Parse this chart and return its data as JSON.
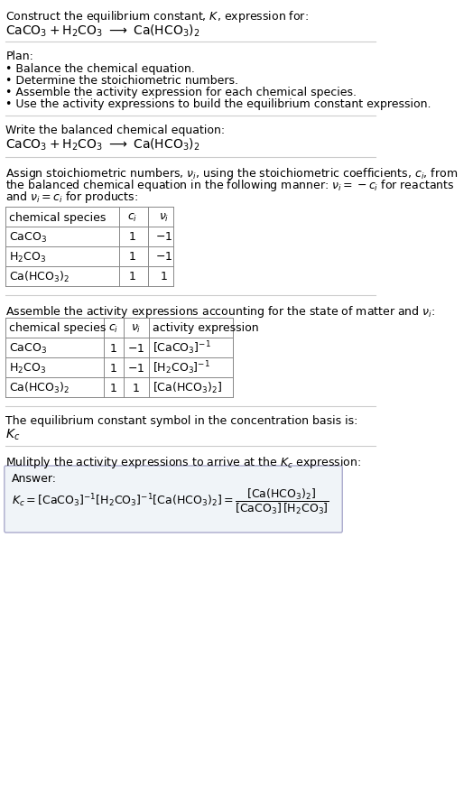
{
  "title_text": "Construct the equilibrium constant, $K$, expression for:",
  "reaction_header": "$\\mathrm{CaCO_3 + H_2CO_3 \\ \\longrightarrow \\ Ca(HCO_3)_2}$",
  "plan_header": "Plan:",
  "plan_bullets": [
    "\\textbullet\\ Balance the chemical equation.",
    "\\textbullet\\ Determine the stoichiometric numbers.",
    "\\textbullet\\ Assemble the activity expression for each chemical species.",
    "\\textbullet\\ Use the activity expressions to build the equilibrium constant expression."
  ],
  "section2_header": "Write the balanced chemical equation:",
  "section2_reaction": "$\\mathrm{CaCO_3 + H_2CO_3 \\ \\longrightarrow \\ Ca(HCO_3)_2}$",
  "section3_header": "Assign stoichiometric numbers, $\\nu_i$, using the stoichiometric coefficients, $c_i$, from\nthe balanced chemical equation in the following manner: $\\nu_i = -c_i$ for reactants\nand $\\nu_i = c_i$ for products:",
  "table1_headers": [
    "chemical species",
    "$c_i$",
    "$\\nu_i$"
  ],
  "table1_rows": [
    [
      "$\\mathrm{CaCO_3}$",
      "1",
      "$-1$"
    ],
    [
      "$\\mathrm{H_2CO_3}$",
      "1",
      "$-1$"
    ],
    [
      "$\\mathrm{Ca(HCO_3)_2}$",
      "1",
      "1"
    ]
  ],
  "section4_header": "Assemble the activity expressions accounting for the state of matter and $\\nu_i$:",
  "table2_headers": [
    "chemical species",
    "$c_i$",
    "$\\nu_i$",
    "activity expression"
  ],
  "table2_rows": [
    [
      "$\\mathrm{CaCO_3}$",
      "1",
      "$-1$",
      "$[\\mathrm{CaCO_3}]^{-1}$"
    ],
    [
      "$\\mathrm{H_2CO_3}$",
      "1",
      "$-1$",
      "$[\\mathrm{H_2CO_3}]^{-1}$"
    ],
    [
      "$\\mathrm{Ca(HCO_3)_2}$",
      "1",
      "1",
      "$[\\mathrm{Ca(HCO_3)_2}]$"
    ]
  ],
  "section5_header": "The equilibrium constant symbol in the concentration basis is:",
  "section5_symbol": "$K_c$",
  "section6_header": "Mulitply the activity expressions to arrive at the $K_c$ expression:",
  "answer_label": "Answer:",
  "answer_line1": "$K_c = [\\mathrm{CaCO_3}]^{-1} [\\mathrm{H_2CO_3}]^{-1} [\\mathrm{Ca(HCO_3)_2}] = \\dfrac{[\\mathrm{Ca(HCO_3)_2}]}{[\\mathrm{CaCO_3}]\\,[\\mathrm{H_2CO_3}]}$",
  "bg_color": "#ffffff",
  "text_color": "#000000",
  "table_border_color": "#aaaaaa",
  "answer_bg_color": "#f0f4f8",
  "answer_border_color": "#aaaacc",
  "font_size": 9,
  "table_font_size": 9
}
